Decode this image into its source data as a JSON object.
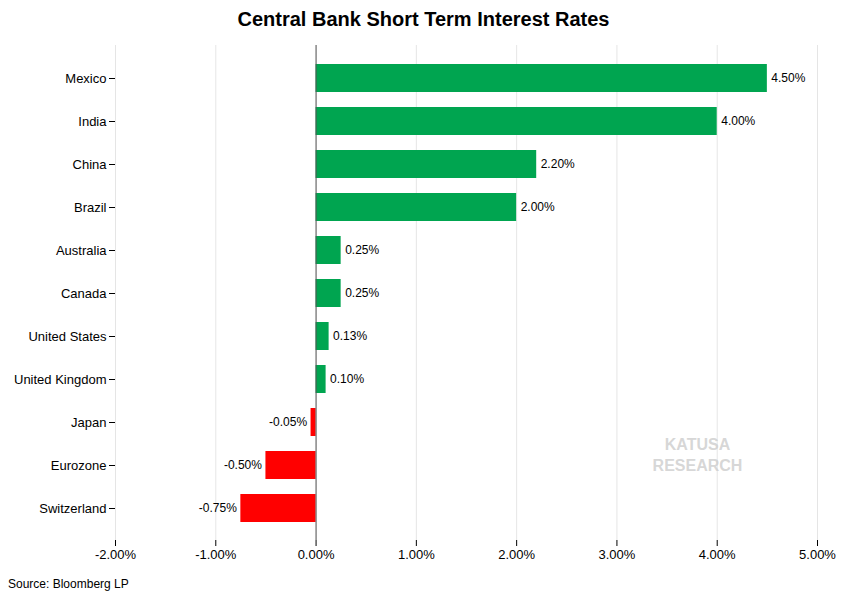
{
  "chart_data": {
    "type": "bar",
    "orientation": "horizontal",
    "title": "Central Bank Short Term Interest Rates",
    "caption": "Source: Bloomberg LP",
    "annotations": [
      {
        "text": "KATUSA\nRESEARCH"
      }
    ],
    "categories": [
      "Mexico",
      "India",
      "China",
      "Brazil",
      "Australia",
      "Canada",
      "United States",
      "United Kingdom",
      "Japan",
      "Eurozone",
      "Switzerland"
    ],
    "values": [
      4.5,
      4.0,
      2.2,
      2.0,
      0.25,
      0.25,
      0.13,
      0.1,
      -0.05,
      -0.5,
      -0.75
    ],
    "value_labels": [
      "4.50%",
      "4.00%",
      "2.20%",
      "2.00%",
      "0.25%",
      "0.25%",
      "0.13%",
      "0.10%",
      "-0.05%",
      "-0.50%",
      "-0.75%"
    ],
    "colors": [
      "#00A550",
      "#00A550",
      "#00A550",
      "#00A550",
      "#00A550",
      "#00A550",
      "#00A550",
      "#00A550",
      "#FF0000",
      "#FF0000",
      "#FF0000"
    ],
    "data_labels": true,
    "xlim": [
      -2.0,
      5.0
    ],
    "xticks": [
      {
        "value": -2.0,
        "label": "-2.00%"
      },
      {
        "value": -1.0,
        "label": "-1.00%"
      },
      {
        "value": 0.0,
        "label": "0.00%"
      },
      {
        "value": 1.0,
        "label": "1.00%"
      },
      {
        "value": 2.0,
        "label": "2.00%"
      },
      {
        "value": 3.0,
        "label": "3.00%"
      },
      {
        "value": 4.0,
        "label": "4.00%"
      },
      {
        "value": 5.0,
        "label": "5.00%"
      }
    ],
    "grid": true
  }
}
